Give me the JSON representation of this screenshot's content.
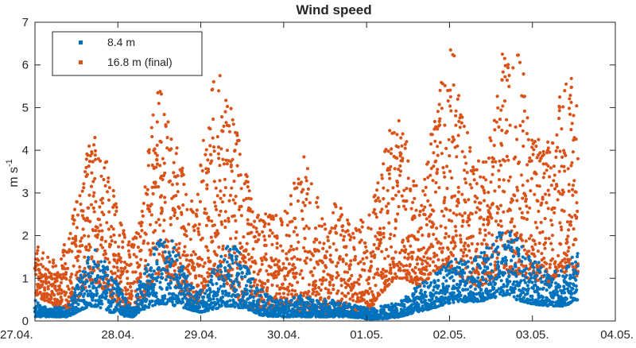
{
  "chart_data": {
    "type": "scatter",
    "title": "Wind speed",
    "xlabel": "",
    "ylabel": "m s",
    "ylabel_superscript": "-1",
    "xlim": [
      "27.04. 00:00",
      "04.05. 00:00"
    ],
    "ylim": [
      0,
      7
    ],
    "yticks": [
      0,
      1,
      2,
      3,
      4,
      5,
      6,
      7
    ],
    "xtick_labels": [
      "27.04.",
      "28.04.",
      "29.04.",
      "30.04.",
      "01.05.",
      "02.05.",
      "03.05.",
      "04.05."
    ],
    "grid": false,
    "legend_placement": "top-left",
    "series": [
      {
        "name": "8.4 m",
        "color": "#0072BD",
        "x_unit": "day",
        "x_start": "27.04.",
        "x_end": "03.05.",
        "envelope_x": [
          0,
          0.15,
          0.4,
          0.5,
          0.6,
          0.7,
          0.8,
          0.9,
          1.0,
          1.1,
          1.2,
          1.25,
          1.4,
          1.5,
          1.6,
          1.7,
          1.8,
          1.9,
          2.0,
          2.2,
          2.35,
          2.5,
          2.6,
          2.7,
          2.85,
          3.0,
          3.2,
          3.4,
          3.6,
          3.8,
          4.0,
          4.2,
          4.4,
          4.6,
          4.8,
          4.95,
          5.1,
          5.3,
          5.5,
          5.6,
          5.7,
          5.8,
          6.0,
          6.2,
          6.4,
          6.55
        ],
        "envelope_upper": [
          0.5,
          0.3,
          0.35,
          0.9,
          1.4,
          1.7,
          1.6,
          1.2,
          0.9,
          0.5,
          0.3,
          0.9,
          1.6,
          1.9,
          2.05,
          1.8,
          1.2,
          0.8,
          0.7,
          1.4,
          1.85,
          1.6,
          1.1,
          0.8,
          0.55,
          0.5,
          0.6,
          0.5,
          0.5,
          0.4,
          0.3,
          0.35,
          0.45,
          0.8,
          1.1,
          1.3,
          1.5,
          1.5,
          1.8,
          2.1,
          2.2,
          2.05,
          1.5,
          1.2,
          1.2,
          1.8
        ],
        "envelope_lower": [
          0.1,
          0.1,
          0.1,
          0.2,
          0.3,
          0.35,
          0.3,
          0.2,
          0.2,
          0.1,
          0.1,
          0.2,
          0.35,
          0.4,
          0.4,
          0.35,
          0.3,
          0.25,
          0.2,
          0.3,
          0.35,
          0.3,
          0.25,
          0.15,
          0.1,
          0.1,
          0.1,
          0.1,
          0.1,
          0.1,
          0.05,
          0.05,
          0.1,
          0.2,
          0.3,
          0.4,
          0.45,
          0.45,
          0.5,
          0.6,
          0.6,
          0.5,
          0.4,
          0.35,
          0.35,
          0.5
        ]
      },
      {
        "name": "16.8 m (final)",
        "color": "#D95319",
        "x_unit": "day",
        "x_start": "27.04.",
        "x_end": "03.05.",
        "envelope_x": [
          0,
          0.1,
          0.3,
          0.45,
          0.55,
          0.65,
          0.75,
          0.85,
          0.95,
          1.05,
          1.15,
          1.25,
          1.4,
          1.5,
          1.55,
          1.65,
          1.75,
          1.85,
          1.95,
          2.05,
          2.15,
          2.25,
          2.35,
          2.45,
          2.55,
          2.65,
          2.75,
          2.85,
          2.95,
          3.05,
          3.15,
          3.25,
          3.35,
          3.45,
          3.55,
          3.65,
          3.75,
          3.85,
          3.95,
          4.05,
          4.15,
          4.25,
          4.35,
          4.45,
          4.55,
          4.65,
          4.75,
          4.85,
          4.95,
          5.05,
          5.15,
          5.25,
          5.35,
          5.45,
          5.55,
          5.65,
          5.75,
          5.85,
          5.95,
          6.05,
          6.15,
          6.25,
          6.35,
          6.45,
          6.55
        ],
        "envelope_upper": [
          1.9,
          1.6,
          1.4,
          2.5,
          3.4,
          4.2,
          4.6,
          4.0,
          3.0,
          2.5,
          1.8,
          2.4,
          4.5,
          5.6,
          5.0,
          4.6,
          4.0,
          2.9,
          2.9,
          4.5,
          5.8,
          5.9,
          5.2,
          4.5,
          3.5,
          2.6,
          2.5,
          2.6,
          2.4,
          2.8,
          3.5,
          4.0,
          3.4,
          2.6,
          2.2,
          3.0,
          2.4,
          2.3,
          2.5,
          2.6,
          3.4,
          4.4,
          4.8,
          4.5,
          3.6,
          3.0,
          4.0,
          5.4,
          6.4,
          6.5,
          5.0,
          4.3,
          3.8,
          4.3,
          4.9,
          6.4,
          6.0,
          6.5,
          5.0,
          4.5,
          4.0,
          4.6,
          5.5,
          6.4,
          5.6
        ],
        "envelope_lower": [
          0.6,
          0.5,
          0.3,
          0.3,
          0.6,
          0.9,
          0.9,
          0.7,
          0.5,
          0.3,
          0.2,
          0.3,
          0.8,
          1.1,
          1.0,
          0.9,
          0.7,
          0.4,
          0.4,
          0.8,
          1.1,
          1.0,
          0.8,
          0.5,
          0.3,
          0.2,
          0.3,
          0.3,
          0.3,
          0.3,
          0.2,
          0.2,
          0.2,
          0.15,
          0.1,
          0.1,
          0.1,
          0.1,
          0.2,
          0.3,
          0.6,
          0.8,
          1.0,
          1.0,
          0.9,
          0.8,
          1.0,
          1.2,
          1.3,
          1.2,
          1.0,
          0.9,
          0.8,
          0.9,
          1.0,
          1.2,
          1.1,
          1.1,
          1.0,
          0.9,
          0.8,
          1.0,
          1.1,
          1.2,
          1.0
        ]
      }
    ]
  }
}
